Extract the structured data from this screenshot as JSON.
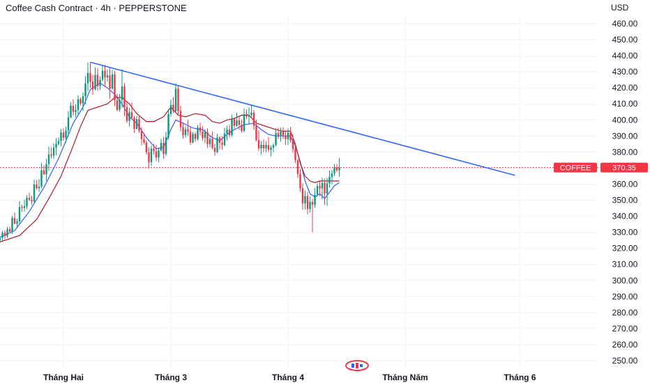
{
  "header": {
    "title": "Coffee Cash Contract · 4h · PEPPERSTONE",
    "currency": "USD"
  },
  "price_tag": {
    "symbol": "COFFEE",
    "value": "370.35",
    "color": "#f23645"
  },
  "colors": {
    "up": "#089981",
    "down": "#f23645",
    "trendline": "#2962ff",
    "ma_red": "#b2182b",
    "ma_blue": "#2962ff"
  },
  "chart_data": {
    "type": "candlestick",
    "y_axis": {
      "min": 250,
      "max": 460,
      "step": 10,
      "ticks": [
        "460.00",
        "450.00",
        "440.00",
        "430.00",
        "420.00",
        "410.00",
        "400.00",
        "390.00",
        "380.00",
        "370.00",
        "360.00",
        "350.00",
        "340.00",
        "330.00",
        "320.00",
        "310.00",
        "300.00",
        "290.00",
        "280.00",
        "270.00",
        "260.00",
        "250.00"
      ]
    },
    "x_axis": {
      "labels": [
        {
          "text": "Tháng Hai",
          "t": 26
        },
        {
          "text": "Tháng 3",
          "t": 70
        },
        {
          "text": "Tháng 4",
          "t": 118
        },
        {
          "text": "Tháng Năm",
          "t": 166
        },
        {
          "text": "Tháng 6",
          "t": 213
        }
      ]
    },
    "current_price": 370.35,
    "trendline": {
      "points": [
        [
          37,
          436
        ],
        [
          211,
          365.5
        ]
      ]
    },
    "candles": [
      [
        0,
        325.3,
        327.5,
        323.8,
        326.5
      ],
      [
        1,
        326.5,
        331.0,
        325.0,
        329.8
      ],
      [
        2,
        329.8,
        331.2,
        325.7,
        327.6
      ],
      [
        3,
        327.6,
        333.3,
        326.6,
        331.9
      ],
      [
        4,
        331.9,
        333.6,
        329.4,
        330.4
      ],
      [
        5,
        330.4,
        340.3,
        328.9,
        338.9
      ],
      [
        6,
        338.9,
        342.3,
        335.0,
        335.4
      ],
      [
        7,
        335.4,
        338.5,
        332.8,
        336.8
      ],
      [
        8,
        336.8,
        349.4,
        335.5,
        345.8
      ],
      [
        9,
        345.8,
        347.2,
        342.8,
        345.2
      ],
      [
        10,
        345.2,
        350.3,
        342.9,
        346.3
      ],
      [
        11,
        346.3,
        353.1,
        344.3,
        351.5
      ],
      [
        12,
        351.5,
        354.7,
        349.4,
        350.3
      ],
      [
        13,
        350.3,
        352.9,
        347.1,
        349.3
      ],
      [
        14,
        349.3,
        362.8,
        348.1,
        359.8
      ],
      [
        15,
        359.8,
        362.4,
        356.5,
        357.5
      ],
      [
        16,
        357.5,
        363.1,
        355.2,
        358.5
      ],
      [
        17,
        358.5,
        373.3,
        357.4,
        368.6
      ],
      [
        18,
        368.6,
        371.8,
        365.7,
        366.1
      ],
      [
        19,
        366.1,
        375.7,
        362.1,
        372.5
      ],
      [
        20,
        372.5,
        383.4,
        368.3,
        378.5
      ],
      [
        21,
        378.5,
        383.0,
        376.1,
        377.8
      ],
      [
        22,
        377.8,
        385.5,
        375.7,
        382.8
      ],
      [
        23,
        382.8,
        388.7,
        377.9,
        385.1
      ],
      [
        24,
        385.1,
        389.2,
        384.1,
        386.9
      ],
      [
        25,
        386.9,
        394.5,
        383.5,
        392.2
      ],
      [
        26,
        392.2,
        394.8,
        387.1,
        388.9
      ],
      [
        27,
        388.9,
        395.8,
        385.9,
        393.4
      ],
      [
        28,
        393.4,
        405.6,
        389.5,
        401.6
      ],
      [
        29,
        401.6,
        411.2,
        401.1,
        408.8
      ],
      [
        30,
        408.8,
        412.9,
        402.8,
        405.0
      ],
      [
        31,
        405.0,
        409.9,
        401.6,
        406.3
      ],
      [
        32,
        406.3,
        415.3,
        403.5,
        412.9
      ],
      [
        33,
        412.9,
        414.0,
        409.1,
        410.3
      ],
      [
        34,
        410.3,
        417.2,
        405.6,
        414.8
      ],
      [
        35,
        414.8,
        427.4,
        409.9,
        422.8
      ],
      [
        36,
        422.8,
        435.9,
        418.1,
        429.3
      ],
      [
        37,
        429.3,
        436.0,
        420.0,
        423.9
      ],
      [
        38,
        423.9,
        428.2,
        415.6,
        419.1
      ],
      [
        39,
        419.1,
        432.9,
        418.4,
        428.1
      ],
      [
        40,
        428.1,
        432.3,
        418.2,
        421.1
      ],
      [
        41,
        421.1,
        427.2,
        418.7,
        425.0
      ],
      [
        42,
        425.0,
        434.5,
        424.0,
        430.7
      ],
      [
        43,
        430.7,
        434.3,
        420.4,
        426.5
      ],
      [
        44,
        426.5,
        431.4,
        423.7,
        427.8
      ],
      [
        45,
        427.8,
        433.0,
        413.0,
        419.5
      ],
      [
        46,
        419.5,
        431.2,
        418.9,
        428.4
      ],
      [
        47,
        428.4,
        430.7,
        408.6,
        412.3
      ],
      [
        48,
        412.3,
        416.3,
        405.3,
        406.3
      ],
      [
        49,
        406.3,
        416.1,
        405.0,
        412.6
      ],
      [
        50,
        412.6,
        431.7,
        407.7,
        420.9
      ],
      [
        51,
        420.9,
        423.1,
        402.3,
        408.1
      ],
      [
        52,
        408.1,
        411.5,
        398.1,
        399.4
      ],
      [
        53,
        399.4,
        407.5,
        395.9,
        404.8
      ],
      [
        54,
        404.8,
        410.7,
        400.3,
        401.4
      ],
      [
        55,
        401.4,
        402.6,
        392.0,
        394.5
      ],
      [
        56,
        394.5,
        402.5,
        394.2,
        400.5
      ],
      [
        57,
        400.5,
        402.9,
        392.0,
        393.2
      ],
      [
        58,
        393.2,
        395.6,
        384.2,
        388.0
      ],
      [
        59,
        388.0,
        391.7,
        384.9,
        385.9
      ],
      [
        60,
        385.9,
        387.3,
        378.3,
        379.9
      ],
      [
        61,
        379.9,
        382.9,
        369.7,
        373.7
      ],
      [
        62,
        373.7,
        384.0,
        371.3,
        382.2
      ],
      [
        63,
        382.2,
        384.9,
        378.5,
        380.5
      ],
      [
        64,
        380.5,
        384.5,
        374.3,
        376.6
      ],
      [
        65,
        376.6,
        382.8,
        373.6,
        381.0
      ],
      [
        66,
        381.0,
        388.3,
        380.1,
        385.7
      ],
      [
        67,
        385.7,
        389.5,
        375.8,
        378.8
      ],
      [
        68,
        378.8,
        392.6,
        377.7,
        389.2
      ],
      [
        69,
        389.2,
        406.6,
        387.6,
        403.7
      ],
      [
        70,
        403.7,
        412.8,
        402.0,
        409.4
      ],
      [
        71,
        409.4,
        414.3,
        404.3,
        405.5
      ],
      [
        72,
        405.5,
        422.9,
        404.6,
        419.5
      ],
      [
        73,
        419.5,
        421.2,
        403.2,
        405.6
      ],
      [
        74,
        405.6,
        408.8,
        392.9,
        395.5
      ],
      [
        75,
        395.5,
        398.6,
        388.3,
        390.5
      ],
      [
        76,
        390.5,
        396.1,
        388.9,
        394.2
      ],
      [
        77,
        394.2,
        400.0,
        390.1,
        392.7
      ],
      [
        78,
        392.7,
        395.7,
        384.5,
        386.0
      ],
      [
        79,
        386.0,
        392.6,
        385.4,
        391.3
      ],
      [
        80,
        391.3,
        392.5,
        386.4,
        388.2
      ],
      [
        81,
        388.2,
        396.8,
        387.2,
        395.3
      ],
      [
        82,
        395.3,
        398.2,
        390.4,
        392.9
      ],
      [
        83,
        392.9,
        396.1,
        387.2,
        388.8
      ],
      [
        84,
        388.8,
        394.2,
        385.5,
        392.5
      ],
      [
        85,
        392.5,
        394.8,
        382.7,
        385.0
      ],
      [
        86,
        385.0,
        390.4,
        382.9,
        388.3
      ],
      [
        87,
        388.3,
        392.8,
        381.8,
        382.5
      ],
      [
        88,
        382.5,
        385.2,
        377.9,
        380.1
      ],
      [
        89,
        380.1,
        391.4,
        379.3,
        389.1
      ],
      [
        90,
        389.1,
        390.0,
        381.4,
        385.8
      ],
      [
        91,
        385.8,
        389.9,
        381.5,
        384.4
      ],
      [
        92,
        384.4,
        395.2,
        383.6,
        391.6
      ],
      [
        93,
        391.6,
        396.5,
        387.4,
        394.0
      ],
      [
        94,
        394.0,
        397.2,
        389.0,
        390.5
      ],
      [
        95,
        390.5,
        403.3,
        389.5,
        400.6
      ],
      [
        96,
        400.6,
        401.6,
        394.5,
        396.4
      ],
      [
        97,
        396.4,
        404.6,
        395.8,
        399.7
      ],
      [
        98,
        399.7,
        402.1,
        393.8,
        397.1
      ],
      [
        99,
        397.1,
        400.3,
        392.1,
        393.1
      ],
      [
        100,
        393.1,
        407.3,
        392.3,
        403.6
      ],
      [
        101,
        403.6,
        406.6,
        400.4,
        402.2
      ],
      [
        102,
        402.2,
        407.9,
        397.1,
        403.1
      ],
      [
        103,
        403.1,
        409.2,
        401.9,
        404.6
      ],
      [
        104,
        404.6,
        406.3,
        393.8,
        396.4
      ],
      [
        105,
        396.4,
        400.3,
        386.6,
        387.5
      ],
      [
        106,
        387.5,
        393.6,
        380.6,
        382.3
      ],
      [
        107,
        382.3,
        386.9,
        378.5,
        384.5
      ],
      [
        108,
        384.5,
        388.1,
        379.8,
        382.4
      ],
      [
        109,
        382.4,
        386.9,
        379.8,
        384.3
      ],
      [
        110,
        384.3,
        389.3,
        379.9,
        381.4
      ],
      [
        111,
        381.4,
        384.1,
        377.2,
        382.8
      ],
      [
        112,
        382.8,
        385.4,
        379.9,
        384.4
      ],
      [
        113,
        384.4,
        395.1,
        383.5,
        391.8
      ],
      [
        114,
        391.8,
        395.2,
        388.3,
        390.3
      ],
      [
        115,
        390.3,
        395.3,
        386.5,
        392.8
      ],
      [
        116,
        392.8,
        395.5,
        388.2,
        390.3
      ],
      [
        117,
        390.3,
        393.2,
        384.4,
        388.1
      ],
      [
        118,
        388.1,
        394.7,
        384.4,
        392.2
      ],
      [
        119,
        392.2,
        395.7,
        385.9,
        387.2
      ],
      [
        120,
        387.2,
        390.9,
        379.6,
        381.9
      ],
      [
        121,
        381.9,
        385.2,
        373.1,
        374.9
      ],
      [
        122,
        374.9,
        375.7,
        363.9,
        366.3
      ],
      [
        123,
        366.3,
        369.7,
        355.2,
        357.4
      ],
      [
        124,
        357.4,
        360.5,
        344.1,
        348.0
      ],
      [
        125,
        348.0,
        356.1,
        344.2,
        352.6
      ],
      [
        126,
        352.6,
        355.3,
        341.3,
        344.5
      ],
      [
        127,
        344.5,
        352.4,
        342.3,
        349.0
      ],
      [
        128,
        349.0,
        350.9,
        330.1,
        347.1
      ],
      [
        129,
        347.1,
        357.6,
        345.3,
        353.4
      ],
      [
        130,
        353.4,
        360.6,
        352.5,
        358.9
      ],
      [
        131,
        358.9,
        361.7,
        352.6,
        357.3
      ],
      [
        132,
        357.3,
        364.0,
        350.5,
        360.8
      ],
      [
        133,
        360.8,
        363.3,
        347.1,
        354.2
      ],
      [
        134,
        354.2,
        364.0,
        346.5,
        360.5
      ],
      [
        135,
        360.5,
        368.4,
        357.7,
        364.5
      ],
      [
        136,
        364.5,
        368.8,
        359.9,
        366.7
      ],
      [
        137,
        366.7,
        372.6,
        365.1,
        370.4
      ],
      [
        138,
        370.4,
        372.6,
        367.5,
        368.6
      ],
      [
        139,
        368.6,
        376.3,
        364.6,
        370.3
      ]
    ],
    "series": [
      {
        "name": "",
        "color": "#2962ff",
        "points": [
          [
            0,
            327
          ],
          [
            6,
            331
          ],
          [
            12,
            343
          ],
          [
            18,
            358
          ],
          [
            24,
            376
          ],
          [
            30,
            398
          ],
          [
            34,
            408
          ],
          [
            37,
            419
          ],
          [
            41,
            423
          ],
          [
            44,
            420
          ],
          [
            47,
            416
          ],
          [
            50,
            410
          ],
          [
            53,
            402
          ],
          [
            56,
            398
          ],
          [
            60,
            389
          ],
          [
            64,
            382
          ],
          [
            67,
            383
          ],
          [
            70,
            394
          ],
          [
            72,
            400
          ],
          [
            75,
            398
          ],
          [
            79,
            395
          ],
          [
            83,
            394
          ],
          [
            87,
            389
          ],
          [
            90,
            387
          ],
          [
            93,
            391
          ],
          [
            96,
            394
          ],
          [
            100,
            397
          ],
          [
            104,
            398
          ],
          [
            107,
            394
          ],
          [
            110,
            391
          ],
          [
            113,
            390
          ],
          [
            116,
            390
          ],
          [
            119,
            390
          ],
          [
            121,
            384
          ],
          [
            123,
            374
          ],
          [
            125,
            362
          ],
          [
            127,
            354
          ],
          [
            129,
            352
          ],
          [
            131,
            354
          ],
          [
            133,
            351
          ],
          [
            135,
            355
          ],
          [
            137,
            359
          ],
          [
            139,
            361
          ]
        ]
      },
      {
        "name": "",
        "color": "#b2182b",
        "points": [
          [
            0,
            324
          ],
          [
            8,
            328
          ],
          [
            15,
            338
          ],
          [
            20,
            351
          ],
          [
            25,
            365
          ],
          [
            30,
            384
          ],
          [
            33,
            396
          ],
          [
            36,
            406
          ],
          [
            40,
            408
          ],
          [
            44,
            410
          ],
          [
            47,
            414
          ],
          [
            50,
            414
          ],
          [
            53,
            410
          ],
          [
            56,
            404
          ],
          [
            60,
            399
          ],
          [
            63,
            399
          ],
          [
            67,
            402
          ],
          [
            70,
            408
          ],
          [
            73,
            403
          ],
          [
            76,
            402
          ],
          [
            80,
            404
          ],
          [
            84,
            403
          ],
          [
            87,
            399
          ],
          [
            90,
            398
          ],
          [
            93,
            400
          ],
          [
            96,
            401
          ],
          [
            99,
            403
          ],
          [
            102,
            403
          ],
          [
            105,
            398
          ],
          [
            109,
            396
          ],
          [
            113,
            394
          ],
          [
            116,
            393
          ],
          [
            119,
            393
          ],
          [
            121,
            385
          ],
          [
            123,
            373
          ],
          [
            125,
            365
          ],
          [
            127,
            362
          ],
          [
            129,
            361
          ],
          [
            131,
            362
          ],
          [
            133,
            362
          ],
          [
            135,
            362
          ],
          [
            137,
            362
          ],
          [
            139,
            362
          ]
        ]
      }
    ]
  }
}
